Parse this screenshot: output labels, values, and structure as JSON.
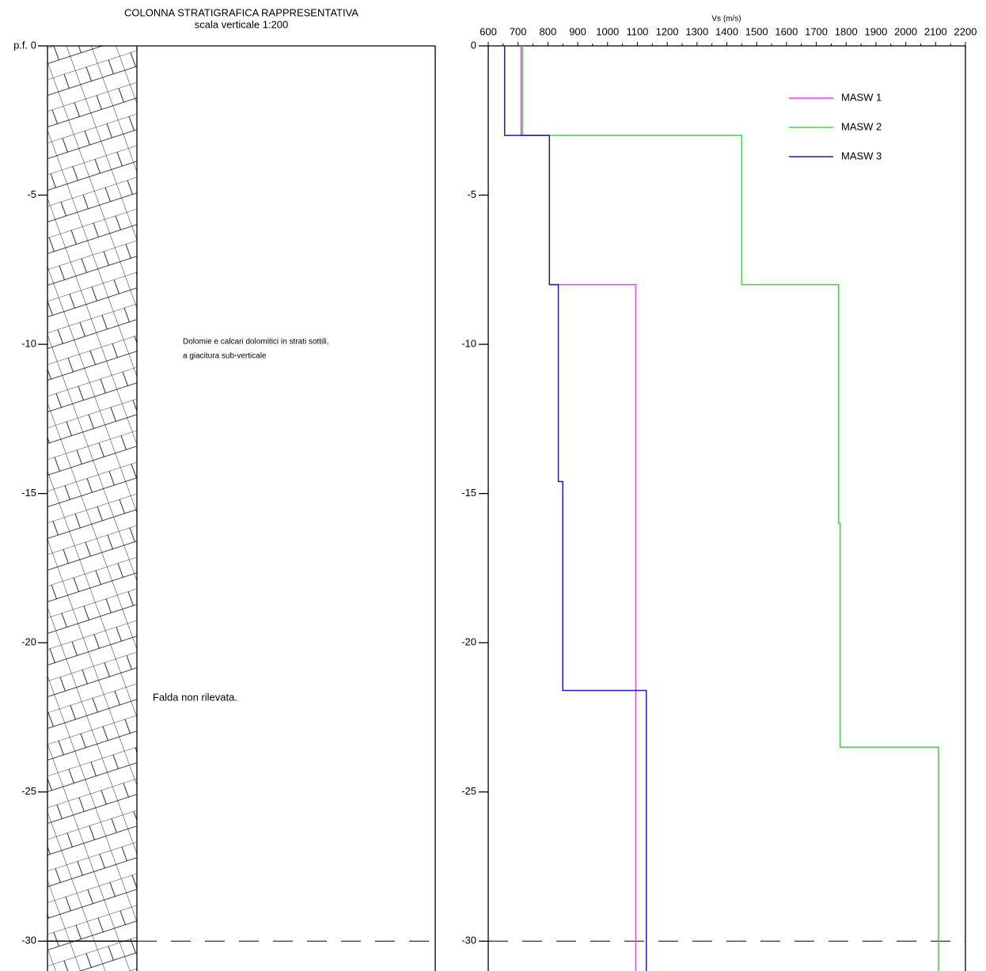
{
  "chart_data": [
    {
      "type": "strat_column",
      "title": "COLONNA STRATIGRAFICA RAPPRESENTATIVA",
      "subtitle": "scala verticale 1:200",
      "ylim": [
        0,
        -31
      ],
      "yticks": [
        {
          "value": 0,
          "label": "p.f. 0"
        },
        -5,
        -10,
        -15,
        -20,
        -25,
        -30
      ],
      "description": [
        "Dolomie e calcari dolomitici in strati sottili,",
        "a giacitura sub-verticale"
      ],
      "annotation": "Falda non rilevata."
    },
    {
      "type": "step_profile",
      "xlabel": "Vs (m/s)",
      "xlim": [
        600,
        2200
      ],
      "xticks": [
        600,
        700,
        800,
        900,
        1000,
        1100,
        1200,
        1300,
        1400,
        1500,
        1600,
        1700,
        1800,
        1900,
        2000,
        2100,
        2200
      ],
      "ylim": [
        0,
        -31
      ],
      "yticks": [
        0,
        -5,
        -10,
        -15,
        -20,
        -25,
        -30
      ],
      "series": [
        {
          "name": "MASW 1",
          "color": "#ff33ff",
          "x": [
            710,
            710,
            805,
            805,
            1095,
            1095
          ],
          "y": [
            0,
            -3,
            -3,
            -8,
            -8,
            -31
          ]
        },
        {
          "name": "MASW 2",
          "color": "#33dd33",
          "x": [
            715,
            715,
            1450,
            1450,
            1775,
            1775,
            1780,
            1780,
            2110,
            2110
          ],
          "y": [
            0,
            -3,
            -3,
            -8,
            -8,
            -16,
            -16,
            -23.5,
            -23.5,
            -31
          ]
        },
        {
          "name": "MASW 3",
          "color": "#1a1acc",
          "x": [
            655,
            655,
            805,
            805,
            835,
            835,
            850,
            850,
            1130,
            1130
          ],
          "y": [
            0,
            -3,
            -3,
            -8,
            -8,
            -14.6,
            -14.6,
            -21.6,
            -21.6,
            -31
          ]
        }
      ]
    }
  ]
}
